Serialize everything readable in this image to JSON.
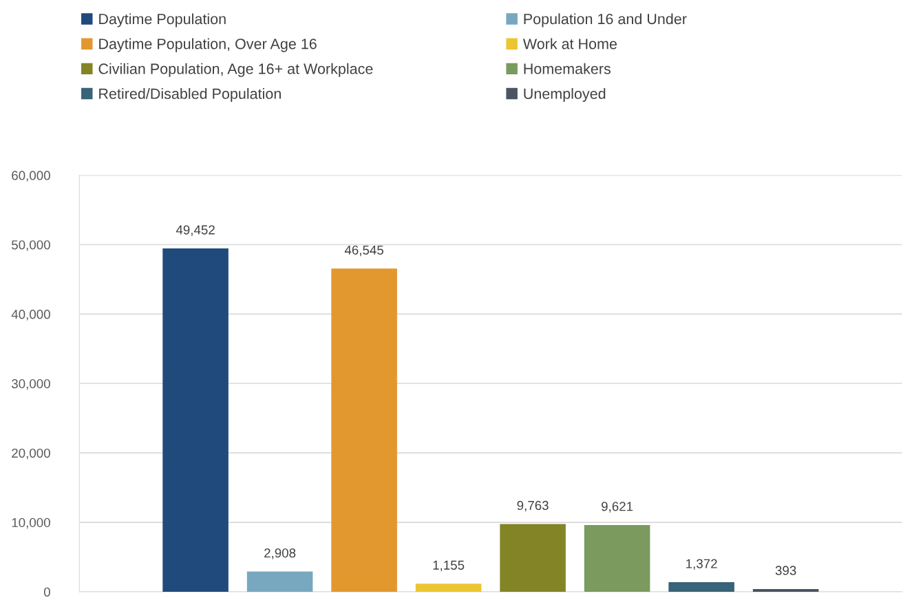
{
  "chart_data": {
    "type": "bar",
    "categories": [
      null
    ],
    "series": [
      {
        "name": "Daytime Population",
        "color": "#214a7c",
        "values": [
          49452
        ],
        "value_labels": [
          "49,452"
        ]
      },
      {
        "name": "Population 16 and Under",
        "color": "#77a8bf",
        "values": [
          2908
        ],
        "value_labels": [
          "2,908"
        ]
      },
      {
        "name": "Daytime Population, Over Age 16",
        "color": "#e3972f",
        "values": [
          46545
        ],
        "value_labels": [
          "46,545"
        ]
      },
      {
        "name": "Work at Home",
        "color": "#ecc531",
        "values": [
          1155
        ],
        "value_labels": [
          "1,155"
        ]
      },
      {
        "name": "Civilian Population, Age 16+ at Workplace",
        "color": "#838426",
        "values": [
          9763
        ],
        "value_labels": [
          "9,763"
        ]
      },
      {
        "name": "Homemakers",
        "color": "#7a9a5e",
        "values": [
          9621
        ],
        "value_labels": [
          "9,621"
        ]
      },
      {
        "name": "Retired/Disabled Population",
        "color": "#386378",
        "values": [
          1372
        ],
        "value_labels": [
          "1,372"
        ]
      },
      {
        "name": "Unemployed",
        "color": "#4a5562",
        "values": [
          393
        ],
        "value_labels": [
          "393"
        ]
      }
    ],
    "ylim": [
      0,
      60000
    ],
    "yticks": [
      0,
      {
        "value": 10000,
        "label": "10,000"
      },
      {
        "value": 20000,
        "label": "20,000"
      },
      {
        "value": 30000,
        "label": "30,000"
      },
      {
        "value": 40000,
        "label": "40,000"
      },
      {
        "value": 50000,
        "label": "50,000"
      },
      {
        "value": 60000,
        "label": "60,000"
      }
    ],
    "grid": "y",
    "legend": "top"
  }
}
